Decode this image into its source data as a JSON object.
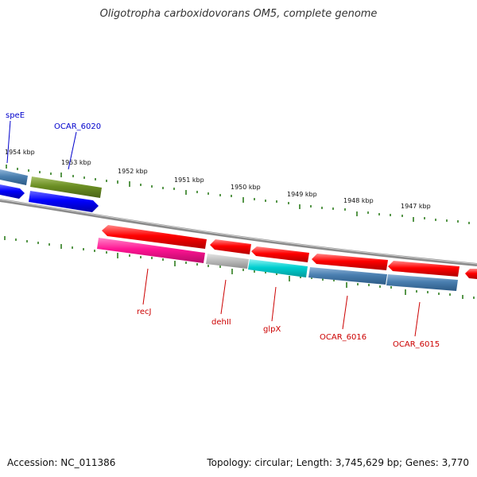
{
  "title": "Oligotropha carboxidovorans OM5, complete genome",
  "footer": {
    "accession": "Accession: NC_011386",
    "summary": "Topology: circular; Length: 3,745,629 bp; Genes: 3,770"
  },
  "scale_ticks": [
    "1954 kbp",
    "1953 kbp",
    "1952 kbp",
    "1951 kbp",
    "1950 kbp",
    "1949 kbp",
    "1948 kbp",
    "1947 kbp"
  ],
  "gene_labels": [
    "speE",
    "OCAR_6020",
    "recJ",
    "dehII",
    "glpX",
    "OCAR_6016",
    "OCAR_6015"
  ],
  "colors": {
    "forward_label": "#0000cc",
    "reverse_label": "#cc0000",
    "tick": "#2e7d1e",
    "backbone": "#8a8a8a"
  }
}
